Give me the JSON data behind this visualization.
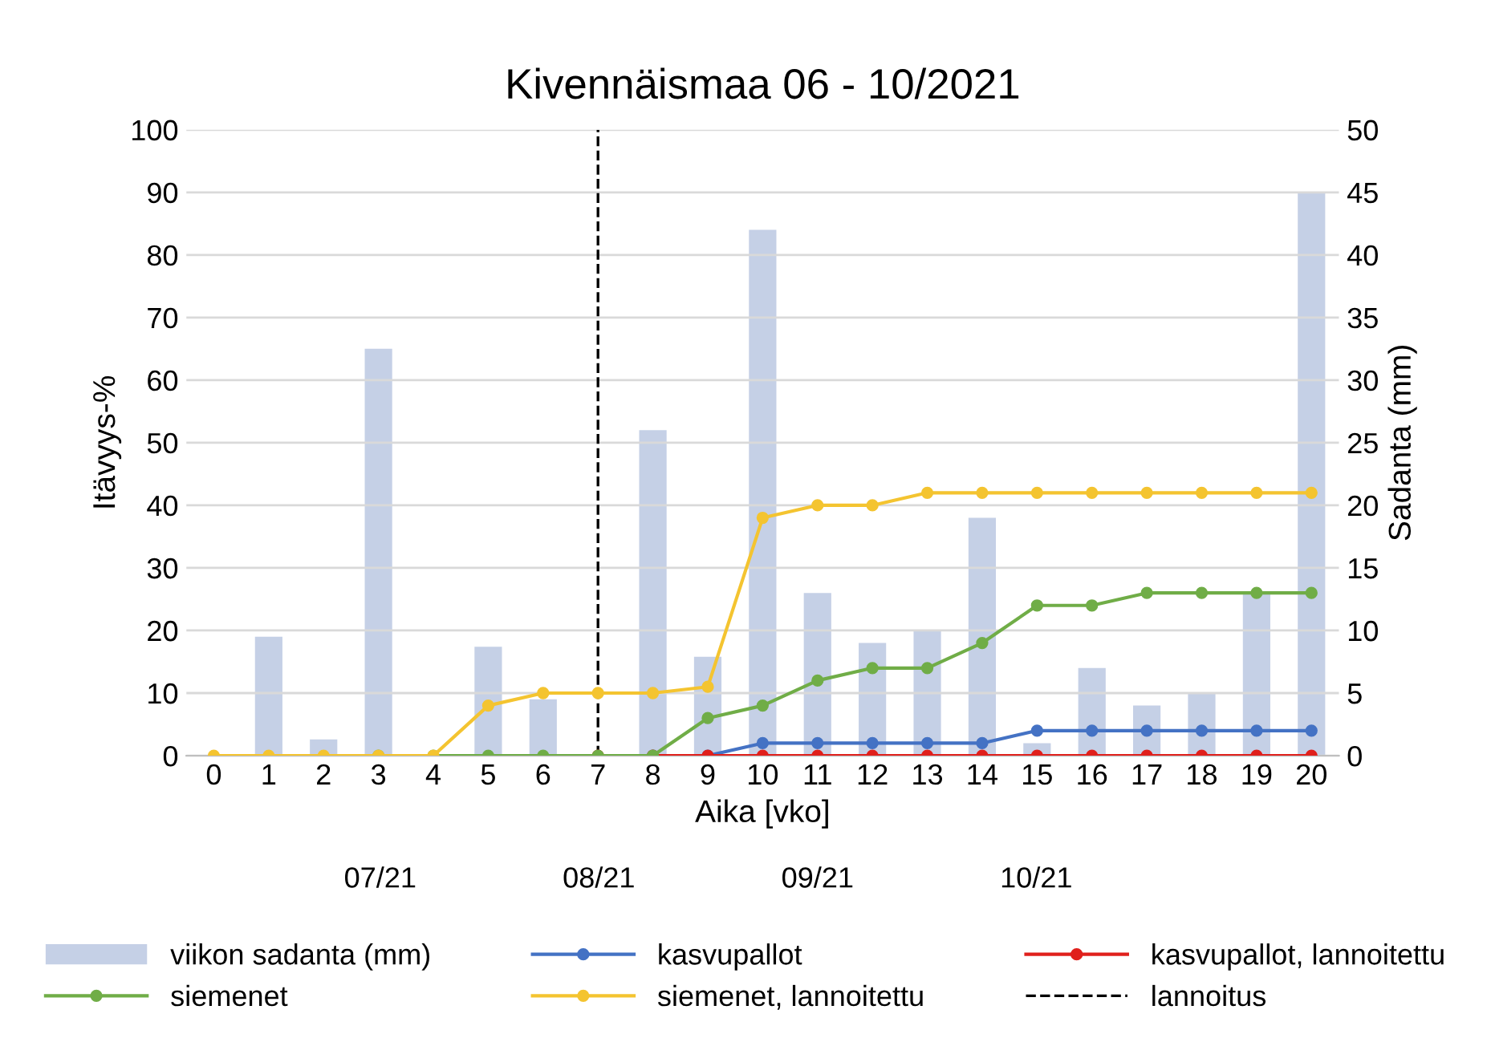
{
  "chart_data": {
    "type": "line",
    "title": "Kivennäismaa 06 - 10/2021",
    "xlabel": "Aika [vko]",
    "ylabel": "Itävyys-%",
    "y2label": "Sadanta (mm)",
    "categories": [
      "0",
      "1",
      "2",
      "3",
      "4",
      "5",
      "6",
      "7",
      "8",
      "9",
      "10",
      "11",
      "12",
      "13",
      "14",
      "15",
      "16",
      "17",
      "18",
      "19",
      "20"
    ],
    "series": [
      {
        "name": "viikon sadanta (mm)",
        "type": "bar",
        "axis": "y2",
        "color": "#c5d0e6",
        "values": [
          0,
          9.5,
          1.3,
          32.5,
          0,
          8.7,
          4.5,
          0,
          26,
          7.9,
          42,
          13,
          9,
          10,
          19,
          1,
          7,
          4,
          5,
          13,
          45
        ]
      },
      {
        "name": "kasvupallot",
        "color": "#4472c4",
        "values": [
          null,
          null,
          null,
          null,
          null,
          null,
          null,
          null,
          0,
          0,
          2,
          2,
          2,
          2,
          2,
          4,
          4,
          4,
          4,
          4,
          4
        ]
      },
      {
        "name": "kasvupallot, lannoitettu",
        "color": "#e0201c",
        "values": [
          null,
          null,
          null,
          null,
          null,
          null,
          null,
          0,
          0,
          0,
          0,
          0,
          0,
          0,
          0,
          0,
          0,
          0,
          0,
          0,
          0
        ]
      },
      {
        "name": "siemenet",
        "color": "#70ad47",
        "values": [
          null,
          null,
          null,
          0,
          0,
          0,
          0,
          0,
          0,
          6,
          8,
          12,
          14,
          14,
          18,
          24,
          24,
          26,
          26,
          26,
          26
        ]
      },
      {
        "name": "siemenet, lannoitettu",
        "color": "#f4c430",
        "values": [
          0,
          0,
          0,
          0,
          0,
          8,
          10,
          10,
          10,
          11,
          38,
          40,
          40,
          42,
          42,
          42,
          42,
          42,
          42,
          42,
          42
        ]
      }
    ],
    "ref_lines": [
      {
        "axis": "x",
        "value": "7",
        "label": "lannoitus",
        "color": "#000000",
        "line_style": "dashed"
      }
    ],
    "annotations": [
      "07/21",
      "08/21",
      "09/21",
      "10/21"
    ],
    "ylim": [
      0,
      100
    ],
    "yticks": [
      0,
      10,
      20,
      30,
      40,
      50,
      60,
      70,
      80,
      90,
      100
    ],
    "y2lim": [
      0,
      50
    ],
    "y2ticks": [
      0,
      5,
      10,
      15,
      20,
      25,
      30,
      35,
      40,
      45,
      50
    ],
    "grid": "y",
    "legend": "bottom",
    "marker": "circle"
  }
}
